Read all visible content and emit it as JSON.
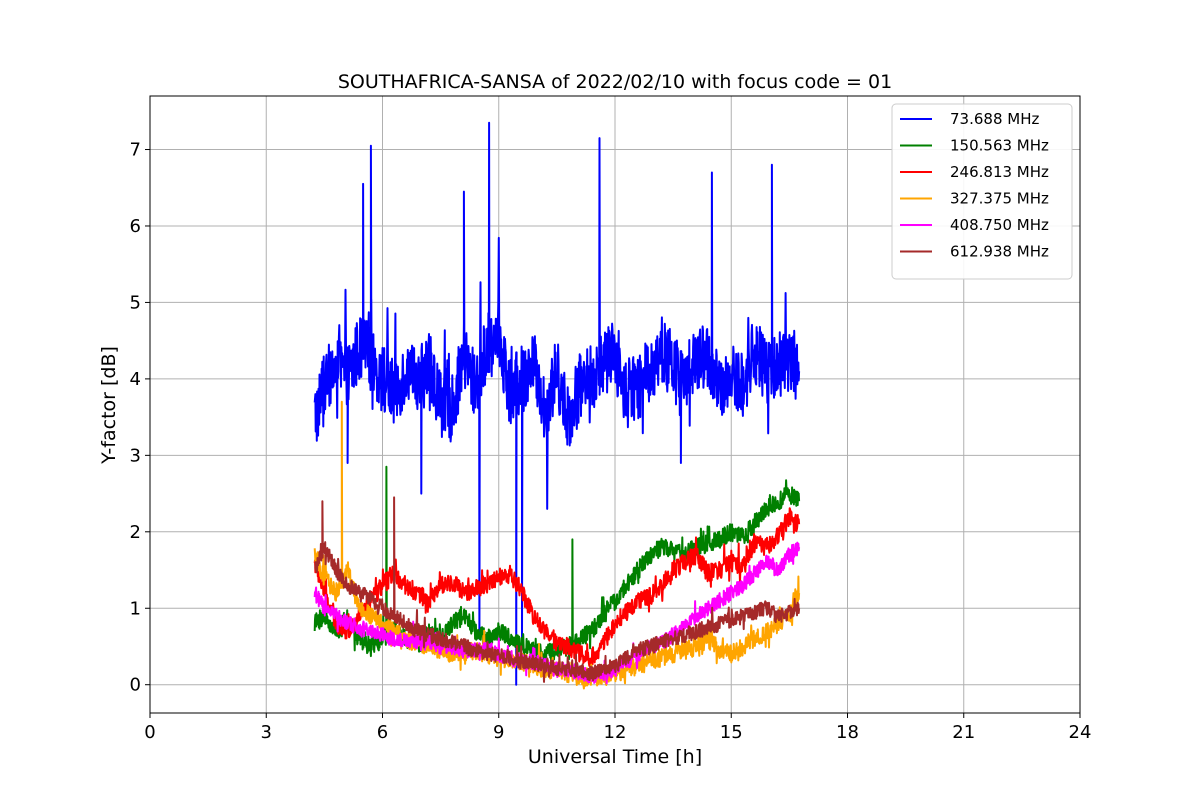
{
  "chart_data": {
    "type": "line",
    "title": "SOUTHAFRICA-SANSA of 2022/02/10 with focus code = 01",
    "xlabel": "Universal Time [h]",
    "ylabel": "Y-factor [dB]",
    "xlim": [
      0,
      24
    ],
    "ylim": [
      -0.37,
      7.7
    ],
    "xticks": [
      0,
      3,
      6,
      9,
      12,
      15,
      18,
      21,
      24
    ],
    "yticks": [
      0,
      1,
      2,
      3,
      4,
      5,
      6,
      7
    ],
    "grid": true,
    "legend_position": "top-right",
    "series": [
      {
        "name": " 73.688 MHz",
        "color": "#0000ff",
        "x": [
          4.25,
          4.5,
          4.8,
          5.1,
          5.4,
          5.7,
          6.0,
          6.3,
          6.6,
          6.9,
          7.2,
          7.5,
          7.8,
          8.1,
          8.4,
          8.7,
          9.0,
          9.3,
          9.6,
          9.9,
          10.2,
          10.5,
          10.8,
          11.1,
          11.4,
          11.7,
          12.0,
          12.3,
          12.6,
          12.9,
          13.2,
          13.5,
          13.8,
          14.1,
          14.4,
          14.7,
          15.0,
          15.3,
          15.6,
          15.9,
          16.2,
          16.5,
          16.75
        ],
        "y": [
          3.5,
          3.9,
          4.2,
          4.0,
          4.4,
          4.3,
          4.0,
          3.8,
          4.1,
          3.9,
          4.2,
          3.7,
          3.6,
          4.3,
          3.9,
          4.4,
          4.6,
          3.8,
          4.0,
          4.2,
          3.6,
          4.1,
          3.5,
          3.9,
          4.0,
          4.2,
          4.3,
          3.8,
          3.9,
          4.1,
          4.4,
          4.1,
          4.0,
          4.2,
          4.3,
          3.8,
          4.0,
          3.9,
          4.4,
          4.1,
          4.2,
          4.3,
          4.1
        ],
        "spikes": [
          [
            5.5,
            6.55
          ],
          [
            5.7,
            7.05
          ],
          [
            8.1,
            6.45
          ],
          [
            8.75,
            7.35
          ],
          [
            11.6,
            7.15
          ],
          [
            14.5,
            6.7
          ],
          [
            16.05,
            6.8
          ],
          [
            9.45,
            0.0
          ],
          [
            9.6,
            0.6
          ],
          [
            10.25,
            2.3
          ],
          [
            8.5,
            0.6
          ],
          [
            7.0,
            2.5
          ],
          [
            5.1,
            2.9
          ],
          [
            13.7,
            2.9
          ]
        ]
      },
      {
        "name": "150.563 MHz",
        "color": "#008000",
        "x": [
          4.25,
          4.5,
          4.8,
          5.1,
          5.4,
          5.7,
          6.0,
          6.3,
          6.6,
          6.9,
          7.2,
          7.5,
          7.8,
          8.1,
          8.4,
          8.7,
          9.0,
          9.3,
          9.6,
          9.9,
          10.2,
          10.5,
          10.8,
          11.1,
          11.4,
          11.7,
          12.0,
          12.3,
          12.6,
          12.9,
          13.2,
          13.5,
          13.8,
          14.1,
          14.4,
          14.7,
          15.0,
          15.3,
          15.6,
          15.9,
          16.2,
          16.5,
          16.75
        ],
        "y": [
          0.8,
          0.9,
          0.7,
          0.8,
          0.6,
          0.5,
          0.6,
          0.7,
          0.6,
          0.5,
          0.7,
          0.6,
          0.8,
          0.9,
          0.7,
          0.6,
          0.7,
          0.6,
          0.5,
          0.45,
          0.4,
          0.45,
          0.5,
          0.6,
          0.7,
          0.9,
          1.1,
          1.3,
          1.5,
          1.7,
          1.8,
          1.75,
          1.7,
          1.8,
          1.85,
          1.9,
          2.0,
          1.95,
          2.1,
          2.3,
          2.4,
          2.5,
          2.4
        ],
        "spikes": [
          [
            6.1,
            2.85
          ],
          [
            10.9,
            1.9
          ]
        ]
      },
      {
        "name": "246.813 MHz",
        "color": "#ff0000",
        "x": [
          4.25,
          4.5,
          4.8,
          5.1,
          5.4,
          5.7,
          6.0,
          6.3,
          6.6,
          6.9,
          7.2,
          7.5,
          7.8,
          8.1,
          8.4,
          8.7,
          9.0,
          9.3,
          9.6,
          9.9,
          10.2,
          10.5,
          10.8,
          11.1,
          11.4,
          11.7,
          12.0,
          12.3,
          12.6,
          12.9,
          13.2,
          13.5,
          13.8,
          14.1,
          14.4,
          14.7,
          15.0,
          15.3,
          15.6,
          15.9,
          16.2,
          16.5,
          16.75
        ],
        "y": [
          1.6,
          1.2,
          0.8,
          0.7,
          0.9,
          1.1,
          1.3,
          1.45,
          1.3,
          1.2,
          1.1,
          1.3,
          1.35,
          1.2,
          1.25,
          1.3,
          1.4,
          1.45,
          1.2,
          0.9,
          0.7,
          0.55,
          0.5,
          0.4,
          0.35,
          0.55,
          0.8,
          0.95,
          1.1,
          1.15,
          1.3,
          1.5,
          1.6,
          1.7,
          1.45,
          1.5,
          1.6,
          1.55,
          1.85,
          1.8,
          1.95,
          2.2,
          2.1
        ],
        "spikes": []
      },
      {
        "name": "327.375 MHz",
        "color": "#ffa500",
        "x": [
          4.25,
          4.5,
          4.8,
          5.1,
          5.4,
          5.7,
          6.0,
          6.3,
          6.6,
          6.9,
          7.2,
          7.5,
          7.8,
          8.1,
          8.4,
          8.7,
          9.0,
          9.3,
          9.6,
          9.9,
          10.2,
          10.5,
          10.8,
          11.1,
          11.4,
          11.7,
          12.0,
          12.3,
          12.6,
          12.9,
          13.2,
          13.5,
          13.8,
          14.1,
          14.4,
          14.7,
          15.0,
          15.3,
          15.6,
          15.9,
          16.2,
          16.5,
          16.75
        ],
        "y": [
          1.7,
          1.4,
          1.2,
          1.5,
          1.0,
          0.9,
          0.8,
          0.7,
          0.6,
          0.55,
          0.5,
          0.45,
          0.4,
          0.4,
          0.45,
          0.4,
          0.35,
          0.3,
          0.3,
          0.25,
          0.2,
          0.2,
          0.15,
          0.1,
          0.1,
          0.1,
          0.15,
          0.2,
          0.25,
          0.3,
          0.35,
          0.4,
          0.45,
          0.5,
          0.6,
          0.45,
          0.4,
          0.5,
          0.6,
          0.7,
          0.8,
          0.9,
          1.2
        ],
        "spikes": [
          [
            4.95,
            3.7
          ]
        ]
      },
      {
        "name": "408.750 MHz",
        "color": "#ff00ff",
        "x": [
          4.25,
          4.5,
          4.8,
          5.1,
          5.4,
          5.7,
          6.0,
          6.3,
          6.6,
          6.9,
          7.2,
          7.5,
          7.8,
          8.1,
          8.4,
          8.7,
          9.0,
          9.3,
          9.6,
          9.9,
          10.2,
          10.5,
          10.8,
          11.1,
          11.4,
          11.7,
          12.0,
          12.3,
          12.6,
          12.9,
          13.2,
          13.5,
          13.8,
          14.1,
          14.4,
          14.7,
          15.0,
          15.3,
          15.6,
          15.9,
          16.2,
          16.5,
          16.75
        ],
        "y": [
          1.2,
          1.0,
          0.9,
          0.8,
          0.75,
          0.7,
          0.65,
          0.6,
          0.6,
          0.55,
          0.55,
          0.5,
          0.5,
          0.45,
          0.45,
          0.45,
          0.4,
          0.35,
          0.3,
          0.3,
          0.25,
          0.2,
          0.2,
          0.15,
          0.1,
          0.15,
          0.2,
          0.3,
          0.4,
          0.5,
          0.55,
          0.65,
          0.75,
          0.9,
          1.0,
          1.1,
          1.2,
          1.3,
          1.45,
          1.6,
          1.5,
          1.7,
          1.8
        ],
        "spikes": []
      },
      {
        "name": "612.938 MHz",
        "color": "#a52a2a",
        "x": [
          4.25,
          4.5,
          4.8,
          5.1,
          5.4,
          5.7,
          6.0,
          6.3,
          6.6,
          6.9,
          7.2,
          7.5,
          7.8,
          8.1,
          8.4,
          8.7,
          9.0,
          9.3,
          9.6,
          9.9,
          10.2,
          10.5,
          10.8,
          11.1,
          11.4,
          11.7,
          12.0,
          12.3,
          12.6,
          12.9,
          13.2,
          13.5,
          13.8,
          14.1,
          14.4,
          14.7,
          15.0,
          15.3,
          15.6,
          15.9,
          16.2,
          16.5,
          16.75
        ],
        "y": [
          1.5,
          1.8,
          1.5,
          1.3,
          1.2,
          1.1,
          1.0,
          0.9,
          0.8,
          0.7,
          0.65,
          0.6,
          0.55,
          0.5,
          0.45,
          0.4,
          0.38,
          0.35,
          0.3,
          0.28,
          0.25,
          0.22,
          0.2,
          0.18,
          0.15,
          0.2,
          0.25,
          0.35,
          0.45,
          0.5,
          0.55,
          0.6,
          0.65,
          0.7,
          0.75,
          0.8,
          0.85,
          0.9,
          0.95,
          1.0,
          0.9,
          0.95,
          1.0
        ],
        "spikes": [
          [
            4.45,
            2.4
          ],
          [
            6.3,
            2.45
          ]
        ]
      }
    ]
  }
}
